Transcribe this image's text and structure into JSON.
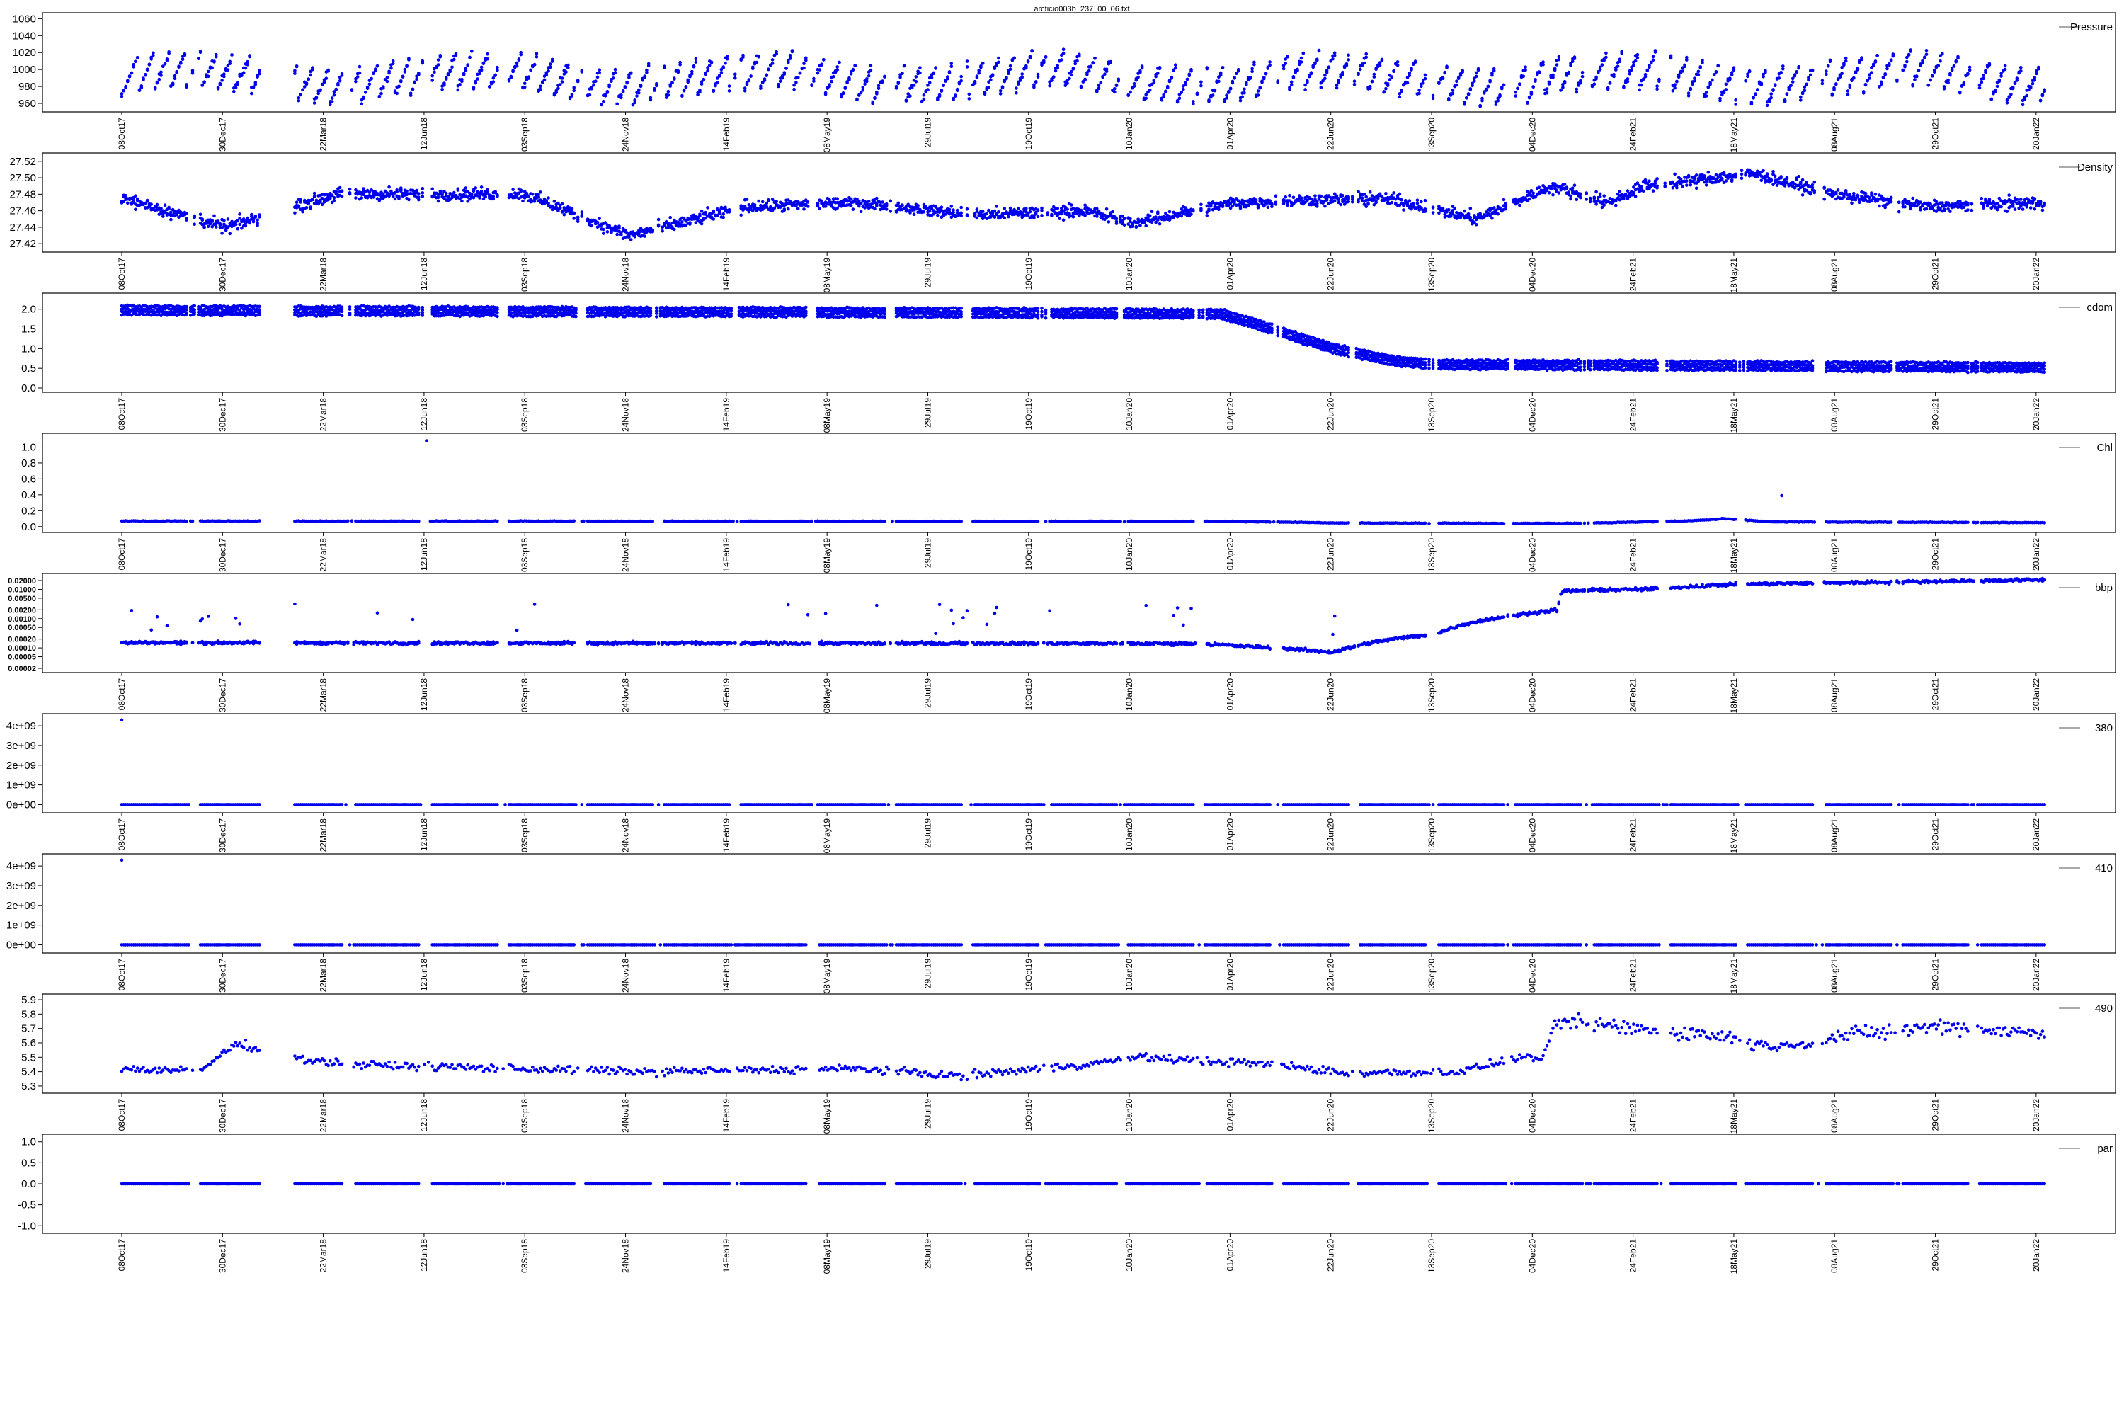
{
  "title": "arcticio003b_237_00_06.txt",
  "colors": {
    "points": "#0000ee",
    "axis": "#000000",
    "legend_line": "#555555",
    "background": "#ffffff"
  },
  "x_axis": {
    "tick_labels": [
      "08Oct17",
      "30Dec17",
      "22Mar18",
      "12Jun18",
      "03Sep18",
      "24Nov18",
      "14Feb19",
      "08May19",
      "29Jul19",
      "19Oct19",
      "10Jan20",
      "01Apr20",
      "22Jun20",
      "13Sep20",
      "04Dec20",
      "24Feb21",
      "18May21",
      "08Aug21",
      "29Oct21",
      "20Jan22"
    ],
    "start": "2017-10-08",
    "end": "2022-01-20",
    "tick_step_days": 82
  },
  "chart_data": [
    {
      "type": "scatter",
      "legend": "Pressure",
      "yticks": [
        "960",
        "980",
        "1000",
        "1020",
        "1040",
        "1060"
      ],
      "ytick_values": [
        960,
        980,
        1000,
        1020,
        1040,
        1060
      ],
      "ylim": [
        955,
        1062
      ],
      "approx_level": 990,
      "noise_amplitude": 30,
      "pattern": "vertical sawtooth streaks per deployment"
    },
    {
      "type": "scatter",
      "legend": "Density",
      "yticks": [
        "27.42",
        "27.44",
        "27.46",
        "27.48",
        "27.50",
        "27.52"
      ],
      "ytick_values": [
        27.42,
        27.44,
        27.46,
        27.48,
        27.5,
        27.52
      ],
      "ylim": [
        27.415,
        27.525
      ],
      "trend": [
        [
          "2017-10-08",
          27.475
        ],
        [
          "2018-01-01",
          27.44
        ],
        [
          "2018-04-01",
          27.48
        ],
        [
          "2018-09-01",
          27.48
        ],
        [
          "2018-11-25",
          27.43
        ],
        [
          "2019-03-01",
          27.465
        ],
        [
          "2019-06-01",
          27.47
        ],
        [
          "2019-09-01",
          27.455
        ],
        [
          "2019-12-01",
          27.46
        ],
        [
          "2020-01-10",
          27.445
        ],
        [
          "2020-04-01",
          27.47
        ],
        [
          "2020-08-01",
          27.475
        ],
        [
          "2020-10-15",
          27.45
        ],
        [
          "2020-12-15",
          27.49
        ],
        [
          "2021-01-30",
          27.47
        ],
        [
          "2021-03-01",
          27.49
        ],
        [
          "2021-05-28",
          27.505
        ],
        [
          "2021-08-01",
          27.48
        ],
        [
          "2021-10-20",
          27.465
        ],
        [
          "2022-01-20",
          27.47
        ]
      ]
    },
    {
      "type": "scatter",
      "legend": "cdom",
      "yticks": [
        "0.0",
        "0.5",
        "1.0",
        "1.5",
        "2.0"
      ],
      "ytick_values": [
        0,
        0.5,
        1,
        1.5,
        2
      ],
      "ylim": [
        0,
        2.3
      ],
      "trend": [
        [
          "2017-10-08",
          1.97
        ],
        [
          "2019-06-01",
          1.92
        ],
        [
          "2020-03-20",
          1.88
        ],
        [
          "2020-04-15",
          1.65
        ],
        [
          "2020-06-20",
          1.0
        ],
        [
          "2020-08-10",
          0.68
        ],
        [
          "2020-09-13",
          0.6
        ],
        [
          "2022-01-20",
          0.52
        ]
      ]
    },
    {
      "type": "scatter",
      "legend": "Chl",
      "yticks": [
        "0.0",
        "0.2",
        "0.4",
        "0.6",
        "0.8",
        "1.0"
      ],
      "ytick_values": [
        0,
        0.2,
        0.4,
        0.6,
        0.8,
        1.0
      ],
      "ylim": [
        -0.02,
        1.12
      ],
      "trend": [
        [
          "2017-10-08",
          0.07
        ],
        [
          "2020-04-01",
          0.065
        ],
        [
          "2020-07-01",
          0.045
        ],
        [
          "2021-01-01",
          0.04
        ],
        [
          "2021-04-01",
          0.07
        ],
        [
          "2021-05-05",
          0.1
        ],
        [
          "2021-06-10",
          0.06
        ],
        [
          "2022-01-20",
          0.05
        ]
      ],
      "outliers": [
        [
          "2018-06-13",
          1.08
        ],
        [
          "2021-06-20",
          0.39
        ]
      ]
    },
    {
      "type": "scatter",
      "legend": "bbp",
      "log_scale": true,
      "yticks": [
        "0.00002",
        "0.00005",
        "0.00010",
        "0.00020",
        "0.00050",
        "0.00100",
        "0.00200",
        "0.00500",
        "0.01000",
        "0.02000"
      ],
      "ytick_values": [
        2e-05,
        5e-05,
        0.0001,
        0.0002,
        0.0005,
        0.001,
        0.002,
        0.005,
        0.01,
        0.02
      ],
      "ylim": [
        2e-05,
        0.025
      ],
      "trend": [
        [
          "2017-10-08",
          0.00015
        ],
        [
          "2020-03-01",
          0.00014
        ],
        [
          "2020-06-20",
          7e-05
        ],
        [
          "2020-07-10",
          0.00012
        ],
        [
          "2020-09-13",
          0.0003
        ],
        [
          "2020-11-10",
          0.0012
        ],
        [
          "2020-12-20",
          0.002
        ],
        [
          "2020-12-23",
          0.0085
        ],
        [
          "2021-01-15",
          0.0095
        ],
        [
          "2021-03-01",
          0.01
        ],
        [
          "2021-05-15",
          0.015
        ],
        [
          "2021-08-10",
          0.017
        ],
        [
          "2022-01-20",
          0.021
        ]
      ]
    },
    {
      "type": "scatter",
      "legend": "380",
      "yticks": [
        "0e+00",
        "1e+09",
        "2e+09",
        "3e+09",
        "4e+09"
      ],
      "ytick_values": [
        0,
        1000000000.0,
        2000000000.0,
        3000000000.0,
        4000000000.0
      ],
      "ylim": [
        -200000000.0,
        4400000000.0
      ],
      "trend": [
        [
          "2017-10-08",
          0
        ],
        [
          "2022-01-20",
          0
        ]
      ],
      "outliers": [
        [
          "2017-10-08",
          4300000000.0
        ]
      ]
    },
    {
      "type": "scatter",
      "legend": "410",
      "yticks": [
        "0e+00",
        "1e+09",
        "2e+09",
        "3e+09",
        "4e+09"
      ],
      "ytick_values": [
        0,
        1000000000.0,
        2000000000.0,
        3000000000.0,
        4000000000.0
      ],
      "ylim": [
        -200000000.0,
        4400000000.0
      ],
      "trend": [
        [
          "2017-10-08",
          0
        ],
        [
          "2022-01-20",
          0
        ]
      ],
      "outliers": [
        [
          "2017-10-08",
          4300000000.0
        ]
      ]
    },
    {
      "type": "scatter",
      "legend": "490",
      "yticks": [
        "5.3",
        "5.4",
        "5.5",
        "5.6",
        "5.7",
        "5.8",
        "5.9"
      ],
      "ytick_values": [
        5.3,
        5.4,
        5.5,
        5.6,
        5.7,
        5.8,
        5.9
      ],
      "ylim": [
        5.28,
        5.91
      ],
      "trend": [
        [
          "2017-10-08",
          5.42
        ],
        [
          "2017-12-10",
          5.4
        ],
        [
          "2018-01-10",
          5.6
        ],
        [
          "2018-02-20",
          5.5
        ],
        [
          "2018-04-10",
          5.45
        ],
        [
          "2018-12-01",
          5.4
        ],
        [
          "2019-06-01",
          5.42
        ],
        [
          "2019-08-20",
          5.37
        ],
        [
          "2019-12-01",
          5.45
        ],
        [
          "2020-01-15",
          5.5
        ],
        [
          "2020-05-01",
          5.45
        ],
        [
          "2020-07-01",
          5.39
        ],
        [
          "2020-10-01",
          5.4
        ],
        [
          "2020-11-20",
          5.5
        ],
        [
          "2020-12-08",
          5.5
        ],
        [
          "2020-12-20",
          5.75
        ],
        [
          "2021-02-20",
          5.7
        ],
        [
          "2021-05-01",
          5.65
        ],
        [
          "2021-06-15",
          5.57
        ],
        [
          "2021-08-10",
          5.65
        ],
        [
          "2021-10-30",
          5.72
        ],
        [
          "2022-01-20",
          5.66
        ]
      ]
    },
    {
      "type": "scatter",
      "legend": "par",
      "yticks": [
        "-1.0",
        "-0.5",
        "0.0",
        "0.5",
        "1.0"
      ],
      "ytick_values": [
        -1,
        -0.5,
        0,
        0.5,
        1
      ],
      "ylim": [
        -1.08,
        1.08
      ],
      "trend": [
        [
          "2017-10-08",
          0
        ],
        [
          "2022-01-20",
          0
        ]
      ]
    }
  ]
}
